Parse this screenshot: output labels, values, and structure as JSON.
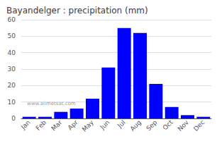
{
  "chart_data": {
    "type": "bar",
    "title": "Bayandelger : precipitation (mm)",
    "categories": [
      "Jan",
      "Feb",
      "Mar",
      "Apr",
      "May",
      "Jun",
      "Jul",
      "Aug",
      "Sep",
      "Oct",
      "Nov",
      "Dec"
    ],
    "values": [
      1,
      1,
      4,
      6,
      12,
      31,
      55,
      52,
      21,
      7,
      2,
      1
    ],
    "color": "#0000ff",
    "ylim": [
      0,
      60
    ],
    "yticks": [
      0,
      10,
      20,
      30,
      40,
      50,
      60
    ],
    "grid": true,
    "annotations": [
      "www.allmetsat.com"
    ]
  }
}
